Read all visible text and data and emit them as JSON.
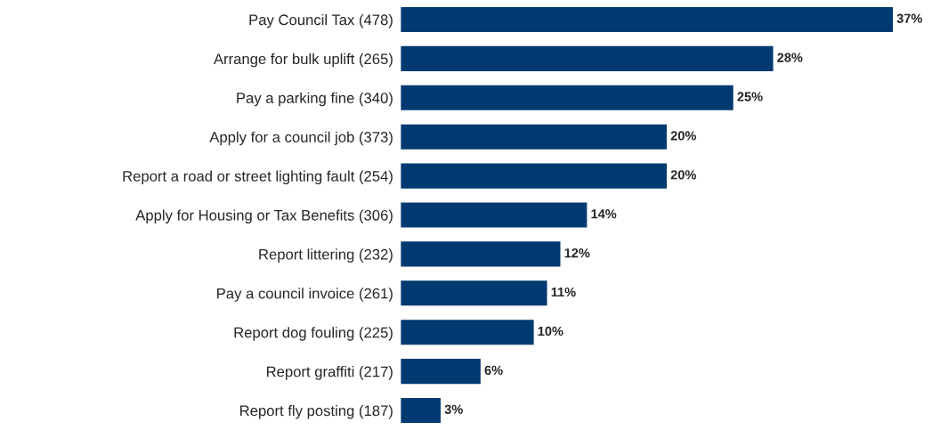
{
  "chart_data": {
    "type": "bar",
    "orientation": "horizontal",
    "categories": [
      "Pay Council Tax (478)",
      "Arrange for bulk uplift (265)",
      "Pay a parking fine (340)",
      "Apply for a council job (373)",
      "Report a road or street lighting fault (254)",
      "Apply for Housing or Tax Benefits (306)",
      "Report littering (232)",
      "Pay a council invoice (261)",
      "Report dog fouling (225)",
      "Report graffiti (217)",
      "Report fly posting (187)"
    ],
    "values": [
      37,
      28,
      25,
      20,
      20,
      14,
      12,
      11,
      10,
      6,
      3
    ],
    "value_labels": [
      "37%",
      "28%",
      "25%",
      "20%",
      "20%",
      "14%",
      "12%",
      "11%",
      "10%",
      "6%",
      "3%"
    ],
    "color": "#003a70",
    "grid": false,
    "legend": false
  }
}
